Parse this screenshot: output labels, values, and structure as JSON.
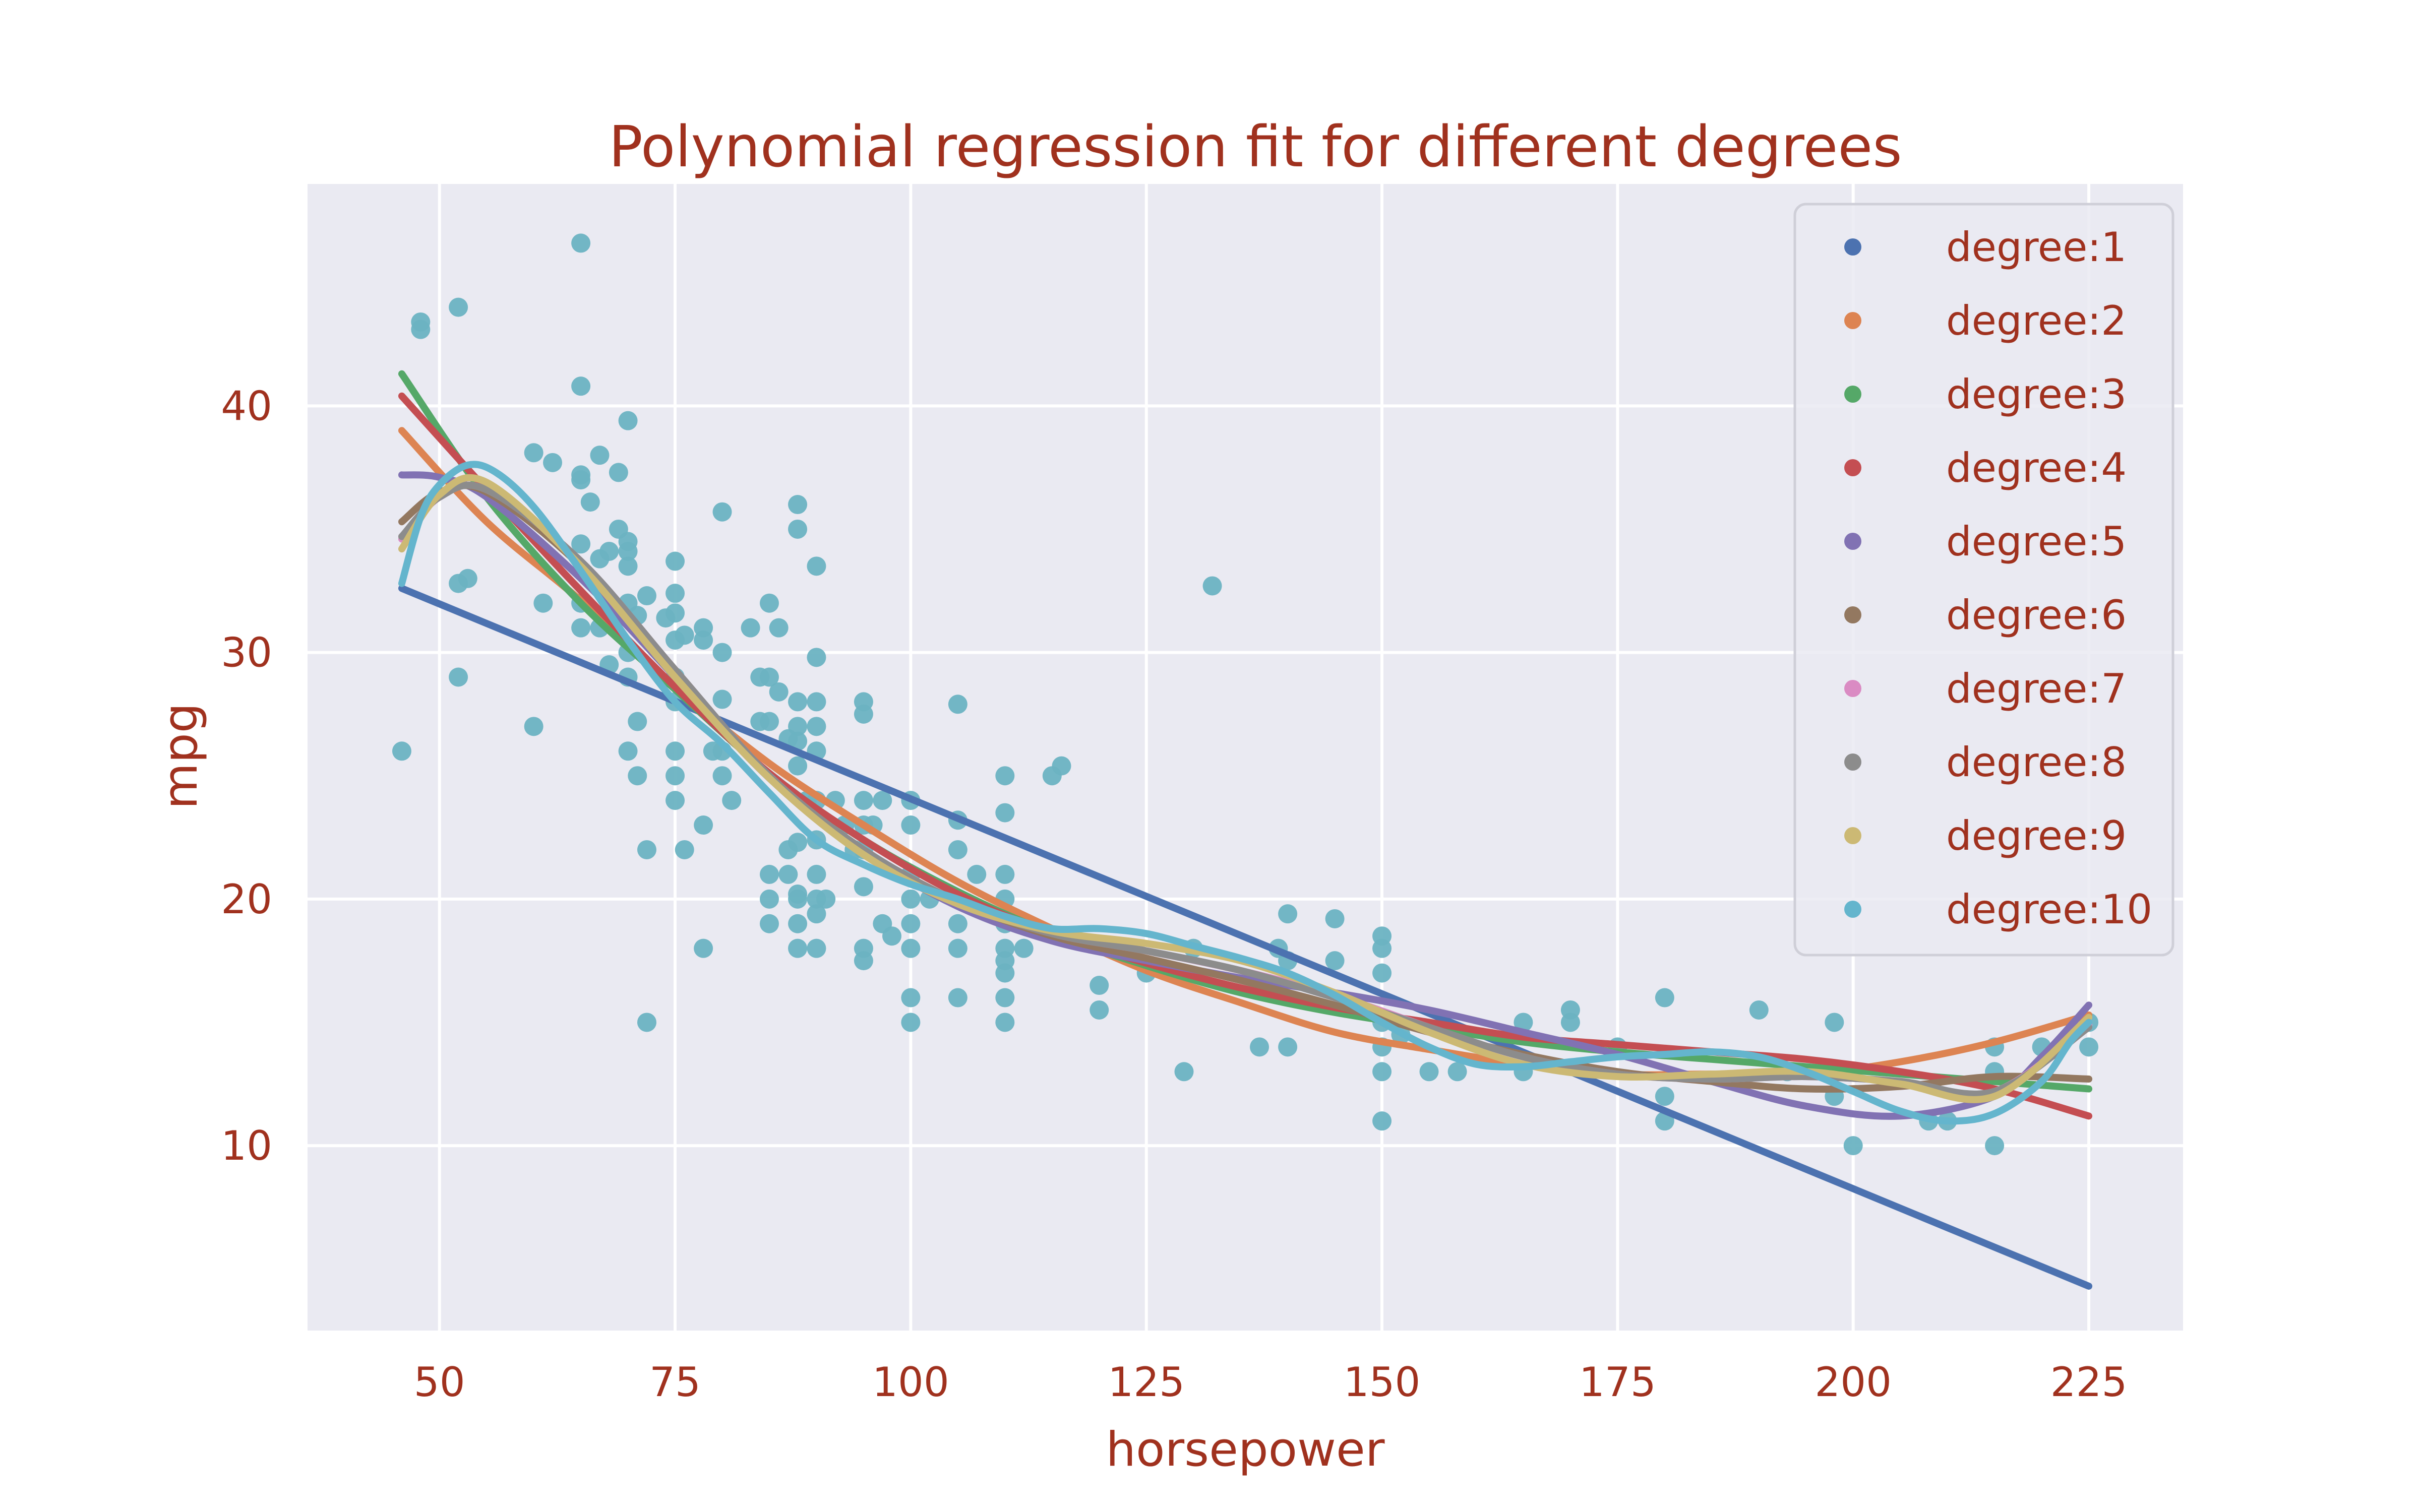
{
  "chart_data": {
    "type": "scatter",
    "title": "Polynomial regression fit for different degrees",
    "xlabel": "horsepower",
    "ylabel": "mpg",
    "xlim": [
      36,
      235
    ],
    "ylim": [
      2.5,
      49
    ],
    "xticks": [
      50,
      75,
      100,
      125,
      150,
      175,
      200,
      225
    ],
    "yticks": [
      10,
      20,
      30,
      40
    ],
    "grid": true,
    "legend_position": "top-right",
    "colors": {
      "plot_bg": "#eaeaf2",
      "grid": "#ffffff",
      "text": "#a0311e",
      "points": "#6cb3c2"
    },
    "scatter": [
      [
        46,
        26
      ],
      [
        48,
        43.4
      ],
      [
        48,
        43.1
      ],
      [
        52,
        44.0
      ],
      [
        52,
        29
      ],
      [
        52,
        32.8
      ],
      [
        53,
        33
      ],
      [
        60,
        38.1
      ],
      [
        60,
        27
      ],
      [
        61,
        32
      ],
      [
        62,
        37.7
      ],
      [
        65,
        46.6
      ],
      [
        65,
        40.8
      ],
      [
        65,
        37.2
      ],
      [
        65,
        37.0
      ],
      [
        65,
        34.4
      ],
      [
        65,
        32
      ],
      [
        65,
        31
      ],
      [
        66,
        36.1
      ],
      [
        67,
        38.0
      ],
      [
        67,
        33.8
      ],
      [
        67,
        31
      ],
      [
        68,
        34.1
      ],
      [
        68,
        29.5
      ],
      [
        69,
        37.3
      ],
      [
        69,
        35
      ],
      [
        70,
        34.5
      ],
      [
        70,
        34.1
      ],
      [
        70,
        33.5
      ],
      [
        70,
        32
      ],
      [
        70,
        30
      ],
      [
        70,
        29
      ],
      [
        70,
        26
      ],
      [
        70,
        39.4
      ],
      [
        71,
        31.5
      ],
      [
        71,
        27.2
      ],
      [
        71,
        25
      ],
      [
        72,
        32.3
      ],
      [
        72,
        22
      ],
      [
        72,
        15
      ],
      [
        74,
        31.4
      ],
      [
        75,
        33.7
      ],
      [
        75,
        32.4
      ],
      [
        75,
        31.6
      ],
      [
        75,
        30.5
      ],
      [
        75,
        29
      ],
      [
        75,
        28
      ],
      [
        75,
        26
      ],
      [
        75,
        25
      ],
      [
        75,
        24
      ],
      [
        76,
        30.7
      ],
      [
        76,
        22
      ],
      [
        78,
        31
      ],
      [
        78,
        30.5
      ],
      [
        78,
        23
      ],
      [
        78,
        18
      ],
      [
        79,
        26
      ],
      [
        80,
        35.7
      ],
      [
        80,
        30
      ],
      [
        80,
        28.1
      ],
      [
        80,
        26
      ],
      [
        80,
        25
      ],
      [
        81,
        24
      ],
      [
        83,
        31
      ],
      [
        84,
        29
      ],
      [
        84,
        27.2
      ],
      [
        85,
        32
      ],
      [
        85,
        29
      ],
      [
        85,
        27.2
      ],
      [
        85,
        21
      ],
      [
        85,
        20
      ],
      [
        85,
        19
      ],
      [
        86,
        31
      ],
      [
        86,
        28.4
      ],
      [
        87,
        26.5
      ],
      [
        87,
        22
      ],
      [
        87,
        21
      ],
      [
        88,
        36
      ],
      [
        88,
        35
      ],
      [
        88,
        28
      ],
      [
        88,
        27
      ],
      [
        88,
        26.4
      ],
      [
        88,
        25.4
      ],
      [
        88,
        22.3
      ],
      [
        88,
        20.2
      ],
      [
        88,
        20
      ],
      [
        88,
        19
      ],
      [
        88,
        18
      ],
      [
        89,
        24
      ],
      [
        90,
        33.5
      ],
      [
        90,
        29.8
      ],
      [
        90,
        28
      ],
      [
        90,
        27
      ],
      [
        90,
        26
      ],
      [
        90,
        24
      ],
      [
        90,
        22.4
      ],
      [
        90,
        21
      ],
      [
        90,
        20
      ],
      [
        90,
        19.4
      ],
      [
        90,
        18
      ],
      [
        91,
        20
      ],
      [
        92,
        24
      ],
      [
        93,
        23
      ],
      [
        94,
        22
      ],
      [
        95,
        28
      ],
      [
        95,
        27.5
      ],
      [
        95,
        24
      ],
      [
        95,
        23
      ],
      [
        95,
        22
      ],
      [
        95,
        20.5
      ],
      [
        95,
        18
      ],
      [
        95,
        17.5
      ],
      [
        96,
        23
      ],
      [
        97,
        24
      ],
      [
        97,
        19
      ],
      [
        98,
        18.5
      ],
      [
        100,
        24
      ],
      [
        100,
        23
      ],
      [
        100,
        21
      ],
      [
        100,
        20
      ],
      [
        100,
        19
      ],
      [
        100,
        18
      ],
      [
        100,
        16
      ],
      [
        100,
        15
      ],
      [
        102,
        20
      ],
      [
        105,
        27.9
      ],
      [
        105,
        23.2
      ],
      [
        105,
        22
      ],
      [
        105,
        20
      ],
      [
        105,
        19
      ],
      [
        105,
        18
      ],
      [
        105,
        16
      ],
      [
        107,
        21
      ],
      [
        110,
        25
      ],
      [
        110,
        23.5
      ],
      [
        110,
        21
      ],
      [
        110,
        20
      ],
      [
        110,
        19
      ],
      [
        110,
        18
      ],
      [
        110,
        17.5
      ],
      [
        110,
        17
      ],
      [
        110,
        16
      ],
      [
        110,
        15
      ],
      [
        112,
        18
      ],
      [
        115,
        25
      ],
      [
        116,
        25.4
      ],
      [
        120,
        16.5
      ],
      [
        120,
        15.5
      ],
      [
        125,
        17
      ],
      [
        129,
        13
      ],
      [
        130,
        18
      ],
      [
        132,
        32.7
      ],
      [
        137,
        14
      ],
      [
        139,
        18
      ],
      [
        140,
        19.4
      ],
      [
        140,
        17.5
      ],
      [
        140,
        14
      ],
      [
        145,
        19.2
      ],
      [
        145,
        17.5
      ],
      [
        150,
        18.5
      ],
      [
        150,
        18
      ],
      [
        150,
        17
      ],
      [
        150,
        15
      ],
      [
        150,
        14
      ],
      [
        150,
        13
      ],
      [
        150,
        11
      ],
      [
        152,
        14.5
      ],
      [
        155,
        13
      ],
      [
        158,
        13
      ],
      [
        165,
        15
      ],
      [
        165,
        13
      ],
      [
        170,
        15.5
      ],
      [
        170,
        15
      ],
      [
        175,
        14
      ],
      [
        180,
        16
      ],
      [
        180,
        12
      ],
      [
        180,
        11
      ],
      [
        190,
        15.5
      ],
      [
        193,
        13
      ],
      [
        198,
        15
      ],
      [
        198,
        12
      ],
      [
        200,
        10
      ],
      [
        208,
        11
      ],
      [
        210,
        11
      ],
      [
        215,
        14
      ],
      [
        215,
        13
      ],
      [
        215,
        10
      ],
      [
        220,
        14
      ],
      [
        225,
        14
      ],
      [
        225,
        15
      ]
    ],
    "series": [
      {
        "name": "degree:1",
        "color": "#4c72b0",
        "x": [
          46,
          225
        ],
        "y": [
          32.6,
          4.3
        ]
      },
      {
        "name": "degree:2",
        "color": "#dd8452",
        "x": [
          46,
          55,
          65,
          75,
          85,
          95,
          105,
          115,
          125,
          135,
          145,
          155,
          165,
          175,
          185,
          195,
          205,
          215,
          225
        ],
        "y": [
          39.0,
          35.3,
          32.1,
          28.6,
          25.5,
          23.0,
          20.7,
          18.8,
          17.1,
          15.8,
          14.6,
          13.9,
          13.3,
          12.9,
          12.9,
          12.9,
          13.4,
          14.2,
          15.3
        ]
      },
      {
        "name": "degree:3",
        "color": "#55a868",
        "x": [
          46,
          55,
          65,
          75,
          85,
          95,
          105,
          115,
          125,
          135,
          145,
          155,
          165,
          175,
          185,
          195,
          205,
          215,
          225
        ],
        "y": [
          41.3,
          36.3,
          32.0,
          28.5,
          25.1,
          22.4,
          20.3,
          18.6,
          17.3,
          16.2,
          15.4,
          14.8,
          14.2,
          13.8,
          13.5,
          13.2,
          12.9,
          12.6,
          12.3
        ]
      },
      {
        "name": "degree:4",
        "color": "#c44e52",
        "x": [
          46,
          55,
          65,
          75,
          85,
          95,
          105,
          115,
          125,
          135,
          145,
          155,
          165,
          175,
          185,
          195,
          205,
          215,
          225
        ],
        "y": [
          40.4,
          36.6,
          32.5,
          28.6,
          25.1,
          22.4,
          20.2,
          18.6,
          17.4,
          16.4,
          15.6,
          15.0,
          14.4,
          14.1,
          13.8,
          13.5,
          13.0,
          12.3,
          11.2
        ]
      },
      {
        "name": "degree:5",
        "color": "#8172b3",
        "x": [
          46,
          50,
          55,
          65,
          75,
          85,
          95,
          105,
          115,
          125,
          135,
          145,
          155,
          165,
          175,
          185,
          195,
          205,
          215,
          220,
          225
        ],
        "y": [
          37.2,
          37.1,
          36.3,
          33.0,
          29.0,
          24.9,
          21.9,
          19.7,
          18.3,
          17.5,
          16.8,
          16.2,
          15.5,
          14.6,
          13.7,
          12.6,
          11.6,
          11.2,
          12.0,
          13.6,
          15.7
        ]
      },
      {
        "name": "degree:6",
        "color": "#937860",
        "x": [
          46,
          50,
          55,
          65,
          75,
          85,
          95,
          105,
          115,
          125,
          135,
          145,
          155,
          165,
          175,
          185,
          195,
          205,
          215,
          225
        ],
        "y": [
          35.3,
          36.5,
          36.5,
          33.5,
          29.2,
          25.0,
          22.0,
          19.9,
          18.5,
          17.6,
          16.7,
          15.7,
          14.6,
          13.7,
          13.0,
          12.6,
          12.3,
          12.4,
          12.8,
          12.7
        ]
      },
      {
        "name": "degree:7",
        "color": "#da8bc3",
        "x": [
          46,
          50,
          55,
          65,
          75,
          85,
          95,
          105,
          115,
          125,
          135,
          145,
          155,
          165,
          175,
          185,
          195,
          205,
          215,
          225
        ],
        "y": [
          34.6,
          36.3,
          36.6,
          33.7,
          29.3,
          25.0,
          22.0,
          19.9,
          18.6,
          17.9,
          17.1,
          16.1,
          14.8,
          13.6,
          12.9,
          12.7,
          12.8,
          12.6,
          12.2,
          14.9
        ]
      },
      {
        "name": "degree:8",
        "color": "#8c8c8c",
        "x": [
          46,
          50,
          55,
          65,
          75,
          85,
          95,
          105,
          115,
          125,
          135,
          145,
          155,
          165,
          175,
          185,
          195,
          205,
          215,
          225
        ],
        "y": [
          34.7,
          36.3,
          36.6,
          33.7,
          29.3,
          25.0,
          22.0,
          19.9,
          18.6,
          17.9,
          17.1,
          16.0,
          14.8,
          13.6,
          12.9,
          12.7,
          12.8,
          12.6,
          12.2,
          14.8
        ]
      },
      {
        "name": "degree:9",
        "color": "#ccb974",
        "x": [
          46,
          50,
          55,
          65,
          75,
          85,
          95,
          105,
          115,
          125,
          135,
          145,
          155,
          165,
          175,
          185,
          195,
          205,
          215,
          225
        ],
        "y": [
          34.2,
          36.4,
          36.9,
          33.5,
          29.0,
          24.9,
          21.8,
          19.8,
          18.7,
          18.2,
          17.5,
          16.2,
          14.6,
          13.3,
          12.8,
          12.9,
          13.0,
          12.5,
          12.0,
          15.2
        ]
      },
      {
        "name": "degree:10",
        "color": "#64b5cd",
        "x": [
          46,
          48,
          50,
          53,
          56,
          60,
          65,
          70,
          75,
          80,
          85,
          90,
          95,
          100,
          105,
          110,
          115,
          120,
          125,
          130,
          135,
          140,
          145,
          150,
          155,
          160,
          165,
          170,
          175,
          180,
          185,
          190,
          195,
          200,
          205,
          210,
          215,
          220,
          223,
          225
        ],
        "y": [
          32.8,
          35.5,
          36.8,
          37.6,
          37.3,
          35.9,
          33.3,
          30.5,
          28.0,
          26.3,
          24.3,
          22.4,
          21.4,
          20.6,
          20.0,
          19.3,
          18.8,
          18.8,
          18.6,
          18.1,
          17.6,
          17.0,
          16.1,
          15.0,
          14.0,
          13.3,
          13.2,
          13.4,
          13.6,
          13.7,
          13.8,
          13.6,
          13.0,
          12.2,
          11.4,
          11.0,
          11.3,
          12.6,
          14.2,
          15.0
        ]
      }
    ]
  }
}
